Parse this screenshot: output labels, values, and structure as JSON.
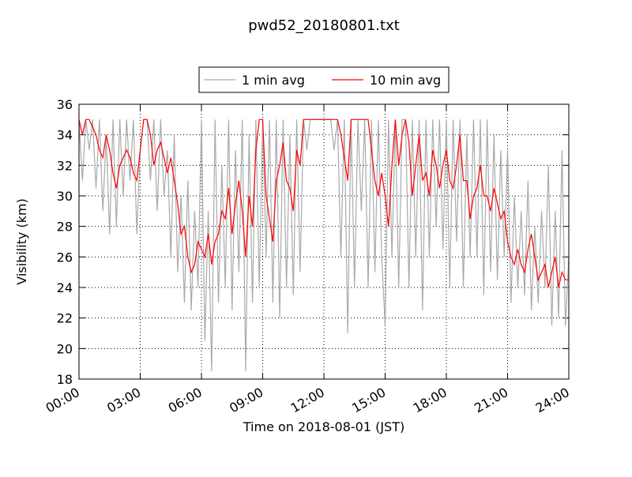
{
  "chart_data": {
    "type": "line",
    "title": "pwd52_20180801.txt",
    "xlabel": "Time on 2018-08-01 (JST)",
    "ylabel": "Visibility (km)",
    "x": [
      0,
      10,
      20,
      30,
      40,
      50,
      60,
      70,
      80,
      90,
      100,
      110,
      120,
      130,
      140,
      150,
      160,
      170,
      180,
      190,
      200,
      210,
      220,
      230,
      240,
      250,
      260,
      270,
      280,
      290,
      300,
      310,
      320,
      330,
      340,
      350,
      360,
      370,
      380,
      390,
      400,
      410,
      420,
      430,
      440,
      450,
      460,
      470,
      480,
      490,
      500,
      510,
      520,
      530,
      540,
      550,
      560,
      570,
      580,
      590,
      600,
      610,
      620,
      630,
      640,
      650,
      660,
      670,
      680,
      690,
      700,
      710,
      720,
      730,
      740,
      750,
      760,
      770,
      780,
      790,
      800,
      810,
      820,
      830,
      840,
      850,
      860,
      870,
      880,
      890,
      900,
      910,
      920,
      930,
      940,
      950,
      960,
      970,
      980,
      990,
      1000,
      1010,
      1020,
      1030,
      1040,
      1050,
      1060,
      1070,
      1080,
      1090,
      1100,
      1110,
      1120,
      1130,
      1140,
      1150,
      1160,
      1170,
      1180,
      1190,
      1200,
      1210,
      1220,
      1230,
      1240,
      1250,
      1260,
      1270,
      1280,
      1290,
      1300,
      1310,
      1320,
      1330,
      1340,
      1350,
      1360,
      1370,
      1380,
      1390,
      1400,
      1410,
      1420,
      1430,
      1440
    ],
    "series": [
      {
        "name": "1 min avg",
        "color": "#aaaaaa",
        "values": [
          35,
          31,
          35,
          33,
          35,
          30.5,
          35,
          29,
          34,
          27.5,
          35,
          28,
          35,
          30,
          35,
          31,
          35,
          27.5,
          33,
          35,
          35,
          31,
          35,
          29,
          35,
          30,
          33,
          26,
          34,
          25,
          30,
          23,
          31,
          22.5,
          29,
          24,
          35,
          20.5,
          29,
          18.5,
          35,
          23,
          32,
          24,
          35,
          22.5,
          33,
          25,
          35,
          18.5,
          34,
          23,
          35,
          24,
          35,
          26,
          35,
          23,
          35,
          22,
          35,
          24,
          34,
          23.5,
          35,
          25,
          35,
          33,
          35,
          35,
          35,
          35,
          35,
          35,
          35,
          33,
          35,
          26,
          35,
          21,
          35,
          24,
          35,
          29,
          35,
          24,
          35,
          25,
          35,
          26,
          21.5,
          35,
          26,
          35,
          24,
          35,
          35,
          24,
          35,
          26,
          35,
          22.5,
          35,
          26,
          35,
          28,
          35,
          26.5,
          35,
          24,
          35,
          27,
          35,
          24,
          34,
          26,
          35,
          26,
          35,
          23.5,
          35,
          25,
          34,
          24.5,
          33,
          26,
          33,
          23,
          30,
          24,
          29,
          23.5,
          31,
          22.5,
          28,
          23,
          29,
          24,
          32,
          21.5,
          29,
          22,
          33,
          21.5,
          26
        ]
      },
      {
        "name": "10 min avg",
        "color": "#ff0000",
        "values": [
          35,
          34,
          35,
          35,
          34.5,
          34,
          33,
          32.5,
          34,
          33,
          31.5,
          30.5,
          32,
          32.5,
          33,
          32.5,
          31.5,
          31,
          33,
          35,
          35,
          34,
          32,
          33,
          33.5,
          32.5,
          31.5,
          32.5,
          31,
          29.5,
          27.5,
          28,
          26,
          25,
          25.5,
          27,
          26.5,
          26,
          27.5,
          25.5,
          27,
          27.5,
          29,
          28.5,
          30.5,
          27.5,
          29.5,
          31,
          29,
          26,
          30,
          28,
          33,
          35,
          35,
          30,
          28.5,
          27,
          31,
          32,
          33.5,
          31,
          30.5,
          29,
          33,
          32,
          35,
          35,
          35,
          35,
          35,
          35,
          35,
          35,
          35,
          35,
          35,
          34,
          32.5,
          31,
          35,
          35,
          35,
          35,
          35,
          35,
          33,
          31,
          30,
          31.5,
          30,
          28,
          32,
          35,
          32,
          34,
          35,
          33.5,
          30,
          32,
          34,
          31,
          31.5,
          30,
          33,
          32,
          30.5,
          32,
          33,
          31,
          30.5,
          32,
          34,
          31,
          31,
          28.5,
          30,
          30.5,
          32,
          30,
          30,
          29,
          30.5,
          29.5,
          28.5,
          29,
          27,
          26,
          25.5,
          26.5,
          25.5,
          25,
          26.5,
          27.5,
          26,
          24.5,
          25,
          25.5,
          24,
          25,
          26,
          24,
          25,
          24.5,
          24.5
        ]
      }
    ],
    "xlim": [
      0,
      1440
    ],
    "xticks": [
      {
        "value": 0,
        "label": "00:00"
      },
      {
        "value": 180,
        "label": "03:00"
      },
      {
        "value": 360,
        "label": "06:00"
      },
      {
        "value": 540,
        "label": "09:00"
      },
      {
        "value": 720,
        "label": "12:00"
      },
      {
        "value": 900,
        "label": "15:00"
      },
      {
        "value": 1080,
        "label": "18:00"
      },
      {
        "value": 1260,
        "label": "21:00"
      },
      {
        "value": 1440,
        "label": "24:00"
      }
    ],
    "ylim": [
      18,
      36
    ],
    "yticks": [
      18,
      20,
      22,
      24,
      26,
      28,
      30,
      32,
      34,
      36
    ],
    "grid": true,
    "legend": "upper center"
  }
}
